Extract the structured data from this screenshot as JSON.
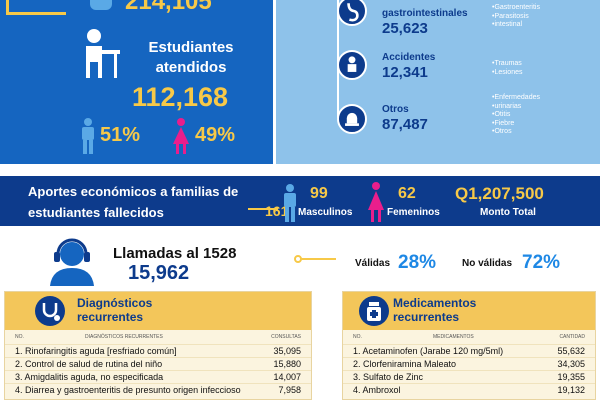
{
  "top": {
    "number": "214,105"
  },
  "students": {
    "title": "Estudiantes atendidos",
    "total": "112,168",
    "male_pct": "51%",
    "female_pct": "49%"
  },
  "categories": [
    {
      "label": "gastrointestinales",
      "value": "25,623",
      "icon": "stomach-icon",
      "bullets": [
        "Gastroenteritis",
        "Parasitosis",
        "intestinal"
      ]
    },
    {
      "label": "Accidentes",
      "value": "12,341",
      "icon": "injured-person-icon",
      "bullets": [
        "Traumas",
        "Lesiones"
      ]
    },
    {
      "label": "Otros",
      "value": "87,487",
      "icon": "alarm-light-icon",
      "bullets": [
        "Enfermedades",
        "urinarias",
        "Otitis",
        "Fiebre",
        "Otros"
      ]
    }
  ],
  "donations": {
    "text": "Aportes económicos a familias de estudiantes fallecidos",
    "count": "161",
    "male_count": "99",
    "male_label": "Masculinos",
    "female_count": "62",
    "female_label": "Femeninos",
    "amount": "Q1,207,500",
    "amount_label": "Monto Total"
  },
  "calls": {
    "title": "Llamadas al 1528",
    "total": "15,962",
    "valid_label": "Válidas",
    "valid_pct": "28%",
    "invalid_label": "No válidas",
    "invalid_pct": "72%"
  },
  "diagnostics": {
    "title": "Diagnósticos recurrentes",
    "col_no": "NO.",
    "col_name": "DIAGNÓSTICOS RECURRENTES",
    "col_value": "CONSULTAS",
    "rows": [
      {
        "name": "1. Rinofaringitis aguda [resfriado común]",
        "value": "35,095"
      },
      {
        "name": "2. Control de salud de rutina del niño",
        "value": "15,880"
      },
      {
        "name": "3. Amigdalitis aguda, no especificada",
        "value": "14,007"
      },
      {
        "name": "4. Diarrea y gastroenteritis de presunto origen infeccioso",
        "value": "7,958"
      }
    ]
  },
  "medicines": {
    "title": "Medicamentos recurrentes",
    "col_no": "NO.",
    "col_name": "MEDICAMENTOS",
    "col_value": "CANTIDAD",
    "rows": [
      {
        "name": "1. Acetaminofen (Jarabe 120 mg/5ml)",
        "value": "55,632"
      },
      {
        "name": "2. Clorfeniramina Maleato",
        "value": "34,305"
      },
      {
        "name": "3. Sulfato de Zinc",
        "value": "19,355"
      },
      {
        "name": "4. Ambroxol",
        "value": "19,132"
      }
    ]
  },
  "colors": {
    "dark_blue": "#0d3b8c",
    "mid_blue": "#1565c0",
    "light_blue": "#8ec2ea",
    "yellow": "#f7c948",
    "pink": "#e91e8c"
  }
}
